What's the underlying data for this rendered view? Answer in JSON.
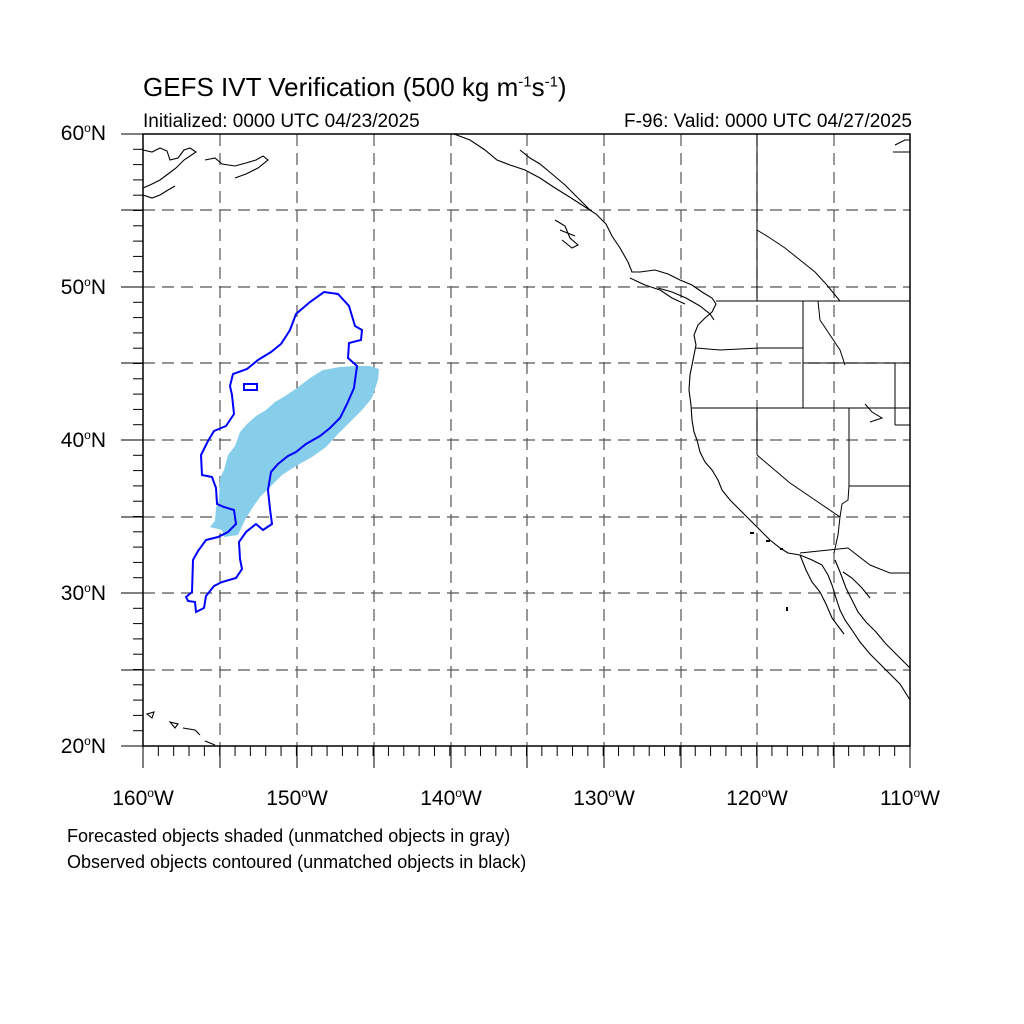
{
  "title": {
    "main": "GEFS IVT Verification (500 kg m",
    "exp1": "-1",
    "mid": "s",
    "exp2": "-1",
    "close": ")"
  },
  "subtitle_left": "Initialized: 0000 UTC 04/23/2025",
  "subtitle_right": "F-96: Valid: 0000 UTC 04/27/2025",
  "axes": {
    "lon_labels": [
      "160",
      "150",
      "140",
      "130",
      "120",
      "110"
    ],
    "lon_suffix": "W",
    "lat_labels": [
      "60",
      "50",
      "40",
      "30",
      "20"
    ],
    "lat_suffix": "N",
    "degree": "o",
    "lon_range": [
      -160,
      -110
    ],
    "lat_range": [
      20,
      60
    ]
  },
  "legend": {
    "line1": "Forecasted objects shaded (unmatched objects in gray)",
    "line2": "Observed objects contoured (unmatched objects in black)"
  },
  "colors": {
    "forecast_fill": "#87ceeb",
    "observed_contour": "#0000ff",
    "coastline": "#000000",
    "grid": "#555555"
  }
}
